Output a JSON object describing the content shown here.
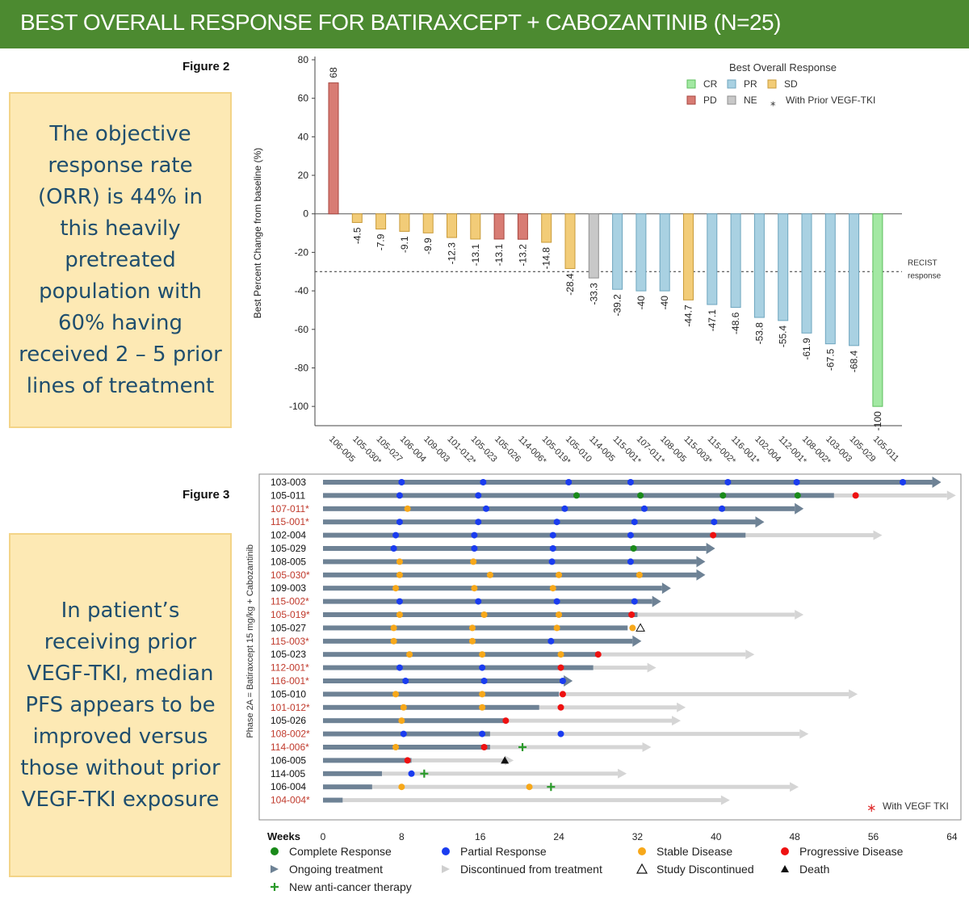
{
  "header": {
    "title": "BEST OVERALL RESPONSE FOR BATIRAXCEPT + CABOZANTINIB  (N=25)"
  },
  "figure2_label": "Figure 2",
  "figure3_label": "Figure 3",
  "callouts": {
    "orr": "The objective response rate (ORR) is 44% in this heavily pretreated population with 60% having received 2 – 5 prior lines of treatment",
    "pfs": "In patient’s receiving prior VEGF-TKI, median PFS appears to be improved versus those without prior VEGF-TKI exposure"
  },
  "colors": {
    "CR": "#a3e8a3",
    "PR": "#a9d1e2",
    "SD": "#f2cc78",
    "PD": "#d87c74",
    "NE": "#c8c8c8",
    "CR_border": "#5cbf5c",
    "PR_border": "#6fa6bf",
    "SD_border": "#c99b3a",
    "PD_border": "#a8463f",
    "NE_border": "#8f8f8f",
    "ongoing": "#6e8295",
    "discontinued": "#d5d5d5",
    "complete": "#1a8a1a",
    "partial": "#1a3cf0",
    "stable": "#f7a81a",
    "progressive": "#ee1111",
    "tki_text": "#c0392b"
  },
  "chart_data": [
    {
      "type": "bar",
      "ylabel": "Best Percent Change from baseline (%)",
      "ylim": [
        -110,
        80
      ],
      "yticks": [
        80,
        60,
        40,
        20,
        0,
        -20,
        -40,
        -60,
        -80,
        -100
      ],
      "reference_line": {
        "y": -30,
        "label_line1": "RECIST",
        "label_line2": "response"
      },
      "legend": {
        "title": "Best Overall Response",
        "position": "top-right",
        "items": [
          {
            "key": "CR",
            "label": "CR"
          },
          {
            "key": "PR",
            "label": "PR"
          },
          {
            "key": "SD",
            "label": "SD"
          },
          {
            "key": "PD",
            "label": "PD"
          },
          {
            "key": "NE",
            "label": "NE"
          }
        ],
        "star_label": "With Prior VEGF-TKI"
      },
      "categories": [
        "106-005",
        "105-030*",
        "105-027",
        "106-004",
        "109-003",
        "101-012*",
        "105-023",
        "105-026",
        "114-006*",
        "105-019*",
        "105-010",
        "114-005",
        "115-001*",
        "107-011*",
        "108-005",
        "115-003*",
        "115-002*",
        "116-001*",
        "102-004",
        "112-001*",
        "108-002*",
        "103-003",
        "105-029",
        "105-011"
      ],
      "values": [
        68,
        -4.5,
        -7.9,
        -9.1,
        -9.9,
        -12.3,
        -13.1,
        -13.1,
        -13.2,
        -14.8,
        -28.4,
        -33.3,
        -39.2,
        -40,
        -40,
        -44.7,
        -47.1,
        -48.6,
        -53.8,
        -55.4,
        -61.9,
        -67.5,
        -68.4,
        -100
      ],
      "labels": [
        "68",
        "-4.5",
        "-7.9",
        "-9.1",
        "-9.9",
        "-12.3",
        "-13.1",
        "-13.1",
        "-13.2",
        "-14.8",
        "-28.4",
        "-33.3",
        "-39.2",
        "-40",
        "-40",
        "-44.7",
        "-47.1",
        "-48.6",
        "-53.8",
        "-55.4",
        "-61.9",
        "-67.5",
        "-68.4",
        "-100"
      ],
      "response": [
        "PD",
        "SD",
        "SD",
        "SD",
        "SD",
        "SD",
        "SD",
        "PD",
        "PD",
        "SD",
        "SD",
        "NE",
        "PR",
        "PR",
        "PR",
        "SD",
        "PR",
        "PR",
        "PR",
        "PR",
        "PR",
        "PR",
        "PR",
        "CR"
      ]
    },
    {
      "type": "swimmer",
      "ylabel": "Phase 2A = Batiraxcept 15 mg/kg + Cabozantinib",
      "xlabel": "Weeks",
      "xlim": [
        0,
        64
      ],
      "xticks": [
        0,
        8,
        16,
        24,
        32,
        40,
        48,
        56,
        64
      ],
      "vegf_note": "With VEGF TKI",
      "legend": [
        {
          "sym": "dot",
          "key": "complete",
          "label": "Complete Response"
        },
        {
          "sym": "dot",
          "key": "partial",
          "label": "Partial Response"
        },
        {
          "sym": "dot",
          "key": "stable",
          "label": "Stable Disease"
        },
        {
          "sym": "dot",
          "key": "progressive",
          "label": "Progressive Disease"
        },
        {
          "sym": "tri-ongoing",
          "key": "ongoing",
          "label": "Ongoing treatment"
        },
        {
          "sym": "tri-disc",
          "key": "discontinued",
          "label": "Discontinued from treatment"
        },
        {
          "sym": "tri-open",
          "key": "study",
          "label": "Study Discontinued"
        },
        {
          "sym": "tri-solid",
          "key": "death",
          "label": "Death"
        },
        {
          "sym": "cross",
          "key": "new",
          "label": "New anti-cancer therapy"
        }
      ],
      "patients": [
        {
          "id": "103-003",
          "vegf": false,
          "treat_end": 62,
          "status": "ongoing",
          "events": [
            [
              "PR",
              8
            ],
            [
              "PR",
              16.3
            ],
            [
              "PR",
              25
            ],
            [
              "PR",
              31.3
            ],
            [
              "PR",
              41.2
            ],
            [
              "PR",
              48.2
            ],
            [
              "PR",
              59
            ]
          ]
        },
        {
          "id": "105-011",
          "vegf": false,
          "treat_end": 52,
          "follow_end": 63.5,
          "status": "discontinued",
          "events": [
            [
              "PR",
              7.8
            ],
            [
              "PR",
              15.8
            ],
            [
              "CR",
              25.8
            ],
            [
              "CR",
              32.3
            ],
            [
              "CR",
              40.7
            ],
            [
              "CR",
              48.3
            ],
            [
              "PD",
              54.2
            ]
          ]
        },
        {
          "id": "107-011*",
          "vegf": true,
          "treat_end": 48,
          "status": "ongoing",
          "events": [
            [
              "SD",
              8.6
            ],
            [
              "PR",
              16.6
            ],
            [
              "PR",
              24.6
            ],
            [
              "PR",
              32.7
            ],
            [
              "PR",
              40.6
            ]
          ]
        },
        {
          "id": "115-001*",
          "vegf": true,
          "treat_end": 44,
          "status": "ongoing",
          "events": [
            [
              "PR",
              7.8
            ],
            [
              "PR",
              15.8
            ],
            [
              "PR",
              23.8
            ],
            [
              "PR",
              31.7
            ],
            [
              "PR",
              39.8
            ]
          ]
        },
        {
          "id": "102-004",
          "vegf": false,
          "treat_end": 43,
          "follow_end": 56,
          "status": "discontinued",
          "events": [
            [
              "PR",
              7.4
            ],
            [
              "PR",
              15.4
            ],
            [
              "PR",
              23.4
            ],
            [
              "PR",
              31.3
            ],
            [
              "PD",
              39.7
            ]
          ]
        },
        {
          "id": "105-029",
          "vegf": false,
          "treat_end": 39,
          "status": "ongoing",
          "events": [
            [
              "PR",
              7.2
            ],
            [
              "PR",
              15.4
            ],
            [
              "PR",
              23.4
            ],
            [
              "CR",
              31.6
            ]
          ]
        },
        {
          "id": "108-005",
          "vegf": false,
          "treat_end": 38,
          "status": "ongoing",
          "events": [
            [
              "SD",
              7.8
            ],
            [
              "SD",
              15.3
            ],
            [
              "PR",
              23.3
            ],
            [
              "PR",
              31.3
            ]
          ]
        },
        {
          "id": "105-030*",
          "vegf": true,
          "treat_end": 38,
          "status": "ongoing",
          "events": [
            [
              "SD",
              7.8
            ],
            [
              "SD",
              17
            ],
            [
              "SD",
              24
            ],
            [
              "SD",
              32.2
            ]
          ]
        },
        {
          "id": "109-003",
          "vegf": false,
          "treat_end": 34.5,
          "status": "ongoing",
          "events": [
            [
              "SD",
              7.4
            ],
            [
              "SD",
              15.4
            ],
            [
              "SD",
              23.4
            ]
          ]
        },
        {
          "id": "115-002*",
          "vegf": true,
          "treat_end": 33.5,
          "status": "ongoing",
          "events": [
            [
              "PR",
              7.8
            ],
            [
              "PR",
              15.8
            ],
            [
              "PR",
              23.8
            ],
            [
              "PR",
              31.7
            ]
          ]
        },
        {
          "id": "105-019*",
          "vegf": true,
          "treat_end": 32,
          "follow_end": 48,
          "status": "discontinued",
          "events": [
            [
              "SD",
              7.8
            ],
            [
              "SD",
              16.4
            ],
            [
              "SD",
              24
            ],
            [
              "PD",
              31.4
            ]
          ]
        },
        {
          "id": "105-027",
          "vegf": false,
          "treat_end": 31,
          "status": "study",
          "marker_x": 32.3,
          "events": [
            [
              "SD",
              7.2
            ],
            [
              "SD",
              15.2
            ],
            [
              "SD",
              23.8
            ],
            [
              "SD",
              31.5
            ]
          ]
        },
        {
          "id": "115-003*",
          "vegf": true,
          "treat_end": 31.5,
          "status": "ongoing",
          "events": [
            [
              "SD",
              7.2
            ],
            [
              "SD",
              15.2
            ],
            [
              "PR",
              23.2
            ]
          ]
        },
        {
          "id": "105-023",
          "vegf": false,
          "treat_end": 28,
          "follow_end": 43,
          "status": "discontinued",
          "events": [
            [
              "SD",
              8.8
            ],
            [
              "SD",
              16.2
            ],
            [
              "SD",
              24.2
            ],
            [
              "PD",
              28
            ]
          ]
        },
        {
          "id": "112-001*",
          "vegf": true,
          "treat_end": 27.5,
          "follow_end": 33,
          "status": "discontinued",
          "events": [
            [
              "PR",
              7.8
            ],
            [
              "PR",
              16.2
            ],
            [
              "PD",
              24.2
            ]
          ]
        },
        {
          "id": "116-001*",
          "vegf": true,
          "treat_end": 24.5,
          "status": "ongoing",
          "events": [
            [
              "PR",
              8.4
            ],
            [
              "PR",
              16.4
            ],
            [
              "PR",
              24.4
            ]
          ]
        },
        {
          "id": "105-010",
          "vegf": false,
          "treat_end": 24,
          "follow_end": 53.5,
          "status": "discontinued",
          "events": [
            [
              "SD",
              7.4
            ],
            [
              "SD",
              16.2
            ],
            [
              "PD",
              24.4
            ]
          ]
        },
        {
          "id": "101-012*",
          "vegf": true,
          "treat_end": 22,
          "follow_end": 36,
          "status": "discontinued",
          "events": [
            [
              "SD",
              8.2
            ],
            [
              "SD",
              16.2
            ],
            [
              "PD",
              24.2
            ]
          ]
        },
        {
          "id": "105-026",
          "vegf": false,
          "treat_end": 18.5,
          "follow_end": 35.5,
          "status": "discontinued",
          "events": [
            [
              "SD",
              8
            ],
            [
              "PD",
              18.6
            ]
          ]
        },
        {
          "id": "108-002*",
          "vegf": true,
          "treat_end": 17,
          "follow_end": 48.5,
          "status": "discontinued",
          "events": [
            [
              "PR",
              8.2
            ],
            [
              "PR",
              16.2
            ],
            [
              "PR",
              24.2
            ]
          ]
        },
        {
          "id": "114-006*",
          "vegf": true,
          "treat_end": 17,
          "follow_end": 32.5,
          "status": "discontinued",
          "events": [
            [
              "SD",
              7.4
            ],
            [
              "PD",
              16.4
            ]
          ],
          "new": 20.3
        },
        {
          "id": "106-005",
          "vegf": false,
          "treat_end": 9,
          "follow_end": 18.5,
          "status": "death",
          "events": [
            [
              "PD",
              8.6
            ]
          ]
        },
        {
          "id": "114-005",
          "vegf": false,
          "treat_end": 6,
          "follow_end": 30,
          "status": "discontinued",
          "events": [
            [
              "PR",
              9
            ]
          ],
          "new": 10.3
        },
        {
          "id": "106-004",
          "vegf": false,
          "treat_end": 5,
          "follow_end": 47.5,
          "status": "discontinued",
          "events": [
            [
              "SD",
              8
            ],
            [
              "SD",
              21
            ]
          ],
          "new": 23.2
        },
        {
          "id": "104-004*",
          "vegf": true,
          "treat_end": 2,
          "follow_end": 40.5,
          "status": "discontinued",
          "events": []
        }
      ]
    }
  ]
}
